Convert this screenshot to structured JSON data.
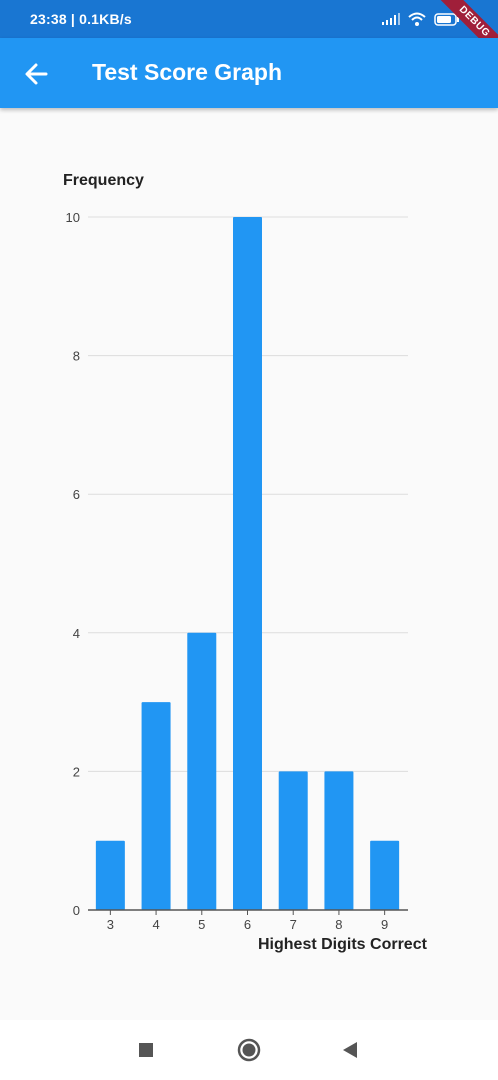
{
  "status_bar": {
    "time": "23:38 | 0.1KB/s",
    "icons": [
      "signal-icon",
      "wifi-icon",
      "battery-icon"
    ],
    "debug_banner": "DEBUG"
  },
  "app_bar": {
    "title": "Test Score Graph",
    "back_icon": "arrow-back-icon",
    "color": "#2196f3"
  },
  "chart_data": {
    "type": "bar",
    "ylabel": "Frequency",
    "xlabel": "Highest Digits Correct",
    "categories": [
      "3",
      "4",
      "5",
      "6",
      "7",
      "8",
      "9"
    ],
    "values": [
      1,
      3,
      4,
      10,
      2,
      2,
      1
    ],
    "ylim": [
      0,
      10
    ],
    "yticks": [
      0,
      2,
      4,
      6,
      8,
      10
    ],
    "grid": true,
    "bar_color": "#2196f3"
  },
  "nav_bar": {
    "buttons": [
      "recent-apps-icon",
      "home-icon",
      "back-triangle-icon"
    ]
  }
}
